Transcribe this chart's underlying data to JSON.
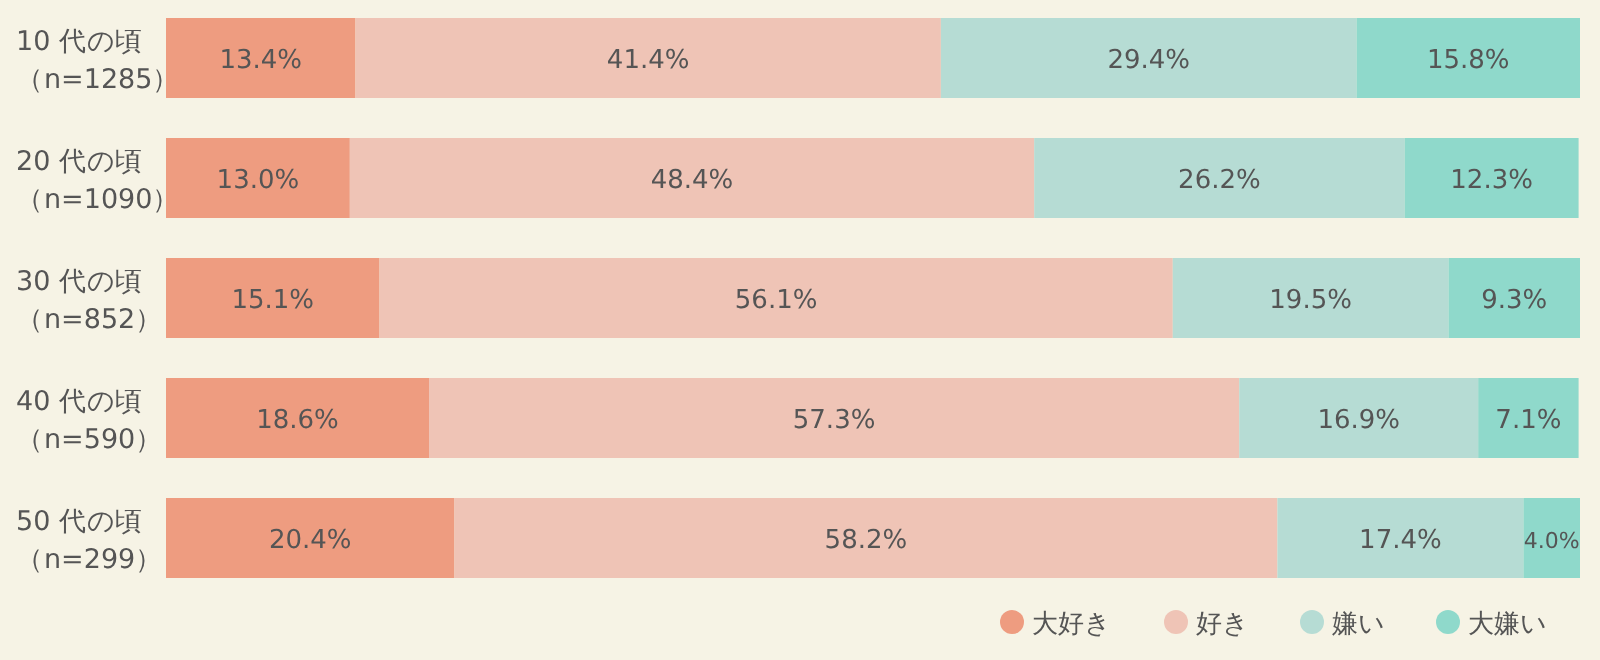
{
  "chart_data": {
    "type": "bar",
    "orientation": "horizontal",
    "stacked": true,
    "categories": [
      "10 代の頃（n=1285）",
      "20 代の頃（n=1090）",
      "30 代の頃（n=852）",
      "40 代の頃（n=590）",
      "50 代の頃（n=299）"
    ],
    "xlim": [
      0,
      100
    ],
    "tick_labels": "y",
    "legend": "bottom right",
    "series": [
      {
        "name": "大好き",
        "color": "#ee9c80",
        "values": [
          13.4,
          13.0,
          15.1,
          18.6,
          20.4
        ],
        "value_labels": [
          "13.4%",
          "13.0%",
          "15.1%",
          "18.6%",
          "20.4%"
        ]
      },
      {
        "name": "好き",
        "color": "#efc4b6",
        "values": [
          41.4,
          48.4,
          56.1,
          57.3,
          58.2
        ],
        "value_labels": [
          "41.4%",
          "48.4%",
          "56.1%",
          "57.3%",
          "58.2%"
        ]
      },
      {
        "name": "嫌い",
        "color": "#b6dcd4",
        "values": [
          29.4,
          26.2,
          19.5,
          16.9,
          17.4
        ],
        "value_labels": [
          "29.4%",
          "26.2%",
          "19.5%",
          "16.9%",
          "17.4%"
        ]
      },
      {
        "name": "大嫌い",
        "color": "#8fd9cb",
        "values": [
          15.8,
          12.3,
          9.3,
          7.1,
          4.0
        ],
        "value_labels": [
          "15.8%",
          "12.3%",
          "9.3%",
          "7.1%",
          "4.0%"
        ]
      }
    ]
  }
}
